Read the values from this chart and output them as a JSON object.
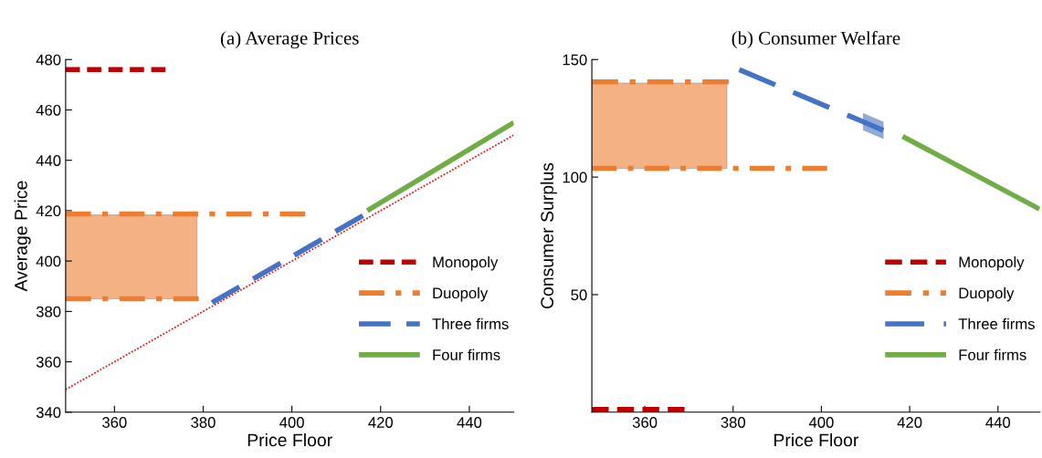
{
  "chart_data": [
    {
      "type": "line",
      "title": "(a) Average Prices",
      "xlabel": "Price Floor",
      "ylabel": "Average Price",
      "xlim": [
        349,
        450
      ],
      "xticks": [
        360,
        380,
        400,
        420,
        440
      ],
      "ylim": [
        340,
        480
      ],
      "yticks": [
        340,
        360,
        380,
        400,
        420,
        440,
        460,
        480
      ],
      "grid": false,
      "legend": "lower right",
      "marker": "none",
      "series": [
        {
          "name": "Monopoly",
          "color": "#c00000",
          "line_style": "dashed",
          "x": [
            349,
            371.5
          ],
          "values": [
            476,
            476
          ]
        },
        {
          "name": "Duopoly",
          "color": "#ed7d31",
          "line_style": "dashdot",
          "x": [
            349,
            378.6,
            403
          ],
          "values": [
            418.7,
            418.7,
            418.7
          ],
          "lower": [
            385,
            385,
            null
          ],
          "upper": [
            418.3,
            418.3,
            null
          ]
        },
        {
          "color": "#ed7d31",
          "line_style": "dashdot",
          "x": [
            349,
            379
          ],
          "values": [
            385,
            385
          ]
        },
        {
          "name": "Three firms",
          "color": "#4472c4",
          "line_style": "longdash",
          "x": [
            382,
            416
          ],
          "values": [
            383.5,
            418
          ]
        },
        {
          "name": "Four firms",
          "color": "#70ad47",
          "line_style": "solid",
          "x": [
            417,
            450
          ],
          "values": [
            420,
            455
          ]
        },
        {
          "color": "#e31a1c",
          "line_style": "dotted",
          "x": [
            349,
            450
          ],
          "values": [
            349,
            450
          ]
        }
      ]
    },
    {
      "type": "line",
      "title": "(b) Consumer Welfare",
      "xlabel": "Price Floor",
      "ylabel": "Consumer Surplus",
      "xlim": [
        348,
        449.5
      ],
      "xticks": [
        360,
        380,
        400,
        420,
        440
      ],
      "ylim": [
        0,
        150
      ],
      "yticks": [
        50,
        100,
        150
      ],
      "grid": false,
      "legend": "lower right",
      "marker": "none",
      "series": [
        {
          "name": "Monopoly",
          "color": "#c00000",
          "line_style": "dashed",
          "x": [
            348,
            369
          ],
          "values": [
            1.2,
            1.2
          ]
        },
        {
          "name": "Duopoly",
          "color": "#ed7d31",
          "line_style": "dashdot",
          "x": [
            348,
            378.6,
            379
          ],
          "values": [
            140.5,
            140.5,
            140.5
          ],
          "lower": [
            103.7,
            103.7,
            null
          ],
          "upper": [
            140,
            140,
            null
          ]
        },
        {
          "color": "#ed7d31",
          "line_style": "dashdot",
          "x": [
            348,
            401.3
          ],
          "values": [
            103.7,
            103.7
          ]
        },
        {
          "name": "Three firms",
          "color": "#4472c4",
          "line_style": "longdash",
          "x": [
            381.4,
            409.5,
            414
          ],
          "values": [
            145.7,
            123.5,
            119.9
          ],
          "lower": [
            null,
            120,
            116.4
          ],
          "upper": [
            null,
            127,
            123.4
          ]
        },
        {
          "name": "Four firms",
          "color": "#70ad47",
          "line_style": "solid",
          "x": [
            418.4,
            449.4
          ],
          "values": [
            117.3,
            86.4
          ]
        }
      ]
    }
  ]
}
